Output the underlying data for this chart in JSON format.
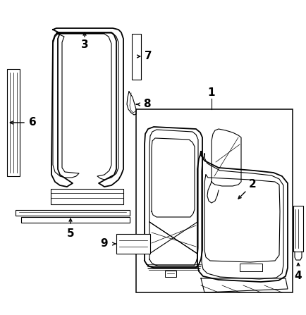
{
  "background_color": "#ffffff",
  "line_color": "#000000",
  "fig_width": 4.34,
  "fig_height": 4.47,
  "dpi": 100
}
